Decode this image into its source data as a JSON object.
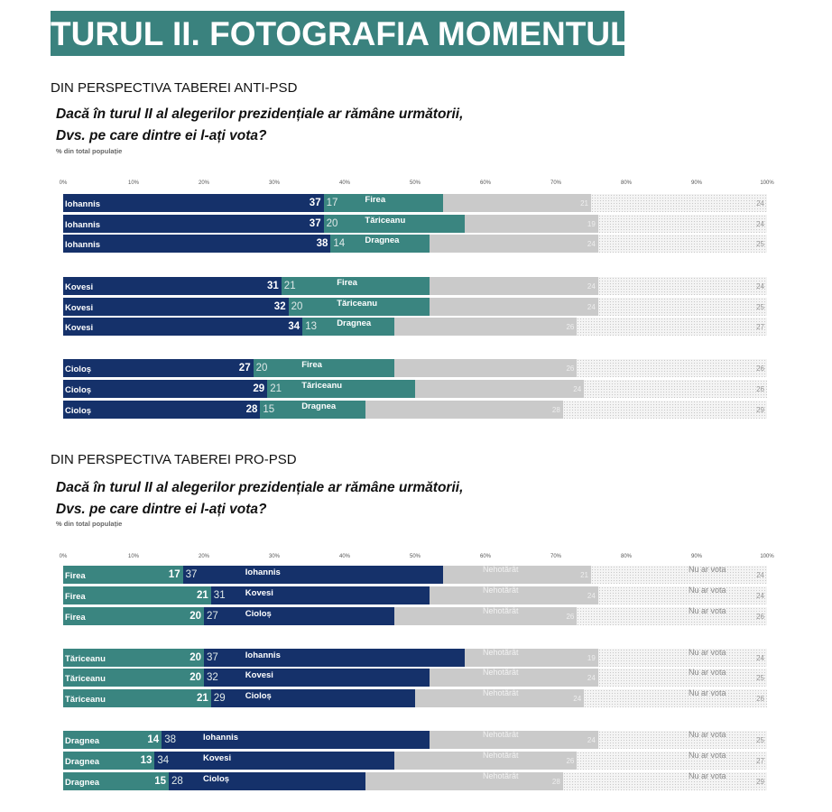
{
  "header": {
    "title": "TURUL II. FOTOGRAFIA MOMENTULUI"
  },
  "sections": [
    {
      "heading": "DIN PERSPECTIVA TABEREI ANTI-PSD",
      "question_line1": "Dacă în turul II al alegerilor prezidențiale ar rămâne următorii,",
      "question_line2": "Dvs. pe care dintre ei l-ați vota?",
      "subtitle": "% din total populație"
    },
    {
      "heading": "DIN PERSPECTIVA TABEREI PRO-PSD",
      "question_line1": "Dacă în turul II al alegerilor prezidențiale ar rămâne următorii,",
      "question_line2": "Dvs. pe care dintre ei l-ați vota?",
      "subtitle": "% din total populație"
    }
  ],
  "colors": {
    "header": "#3a827e",
    "navy": "#15316a",
    "teal": "#3a8580",
    "undecided": "#cacaca",
    "no_vote": "dotted light gray"
  },
  "chart_data": [
    {
      "type": "bar",
      "orientation": "horizontal",
      "stacked": true,
      "xlim": [
        0,
        100
      ],
      "ticks": [
        "0%",
        "10%",
        "20%",
        "30%",
        "40%",
        "50%",
        "60%",
        "70%",
        "80%",
        "90%",
        "100%"
      ],
      "segment_labels": {
        "undecided": "",
        "no_vote": ""
      },
      "rows": [
        {
          "a": "Iohannis",
          "av": 37,
          "b": "Firea",
          "bv": 17,
          "u": 21,
          "n": 24,
          "group": 0
        },
        {
          "a": "Iohannis",
          "av": 37,
          "b": "Tăriceanu",
          "bv": 20,
          "u": 19,
          "n": 24,
          "group": 0
        },
        {
          "a": "Iohannis",
          "av": 38,
          "b": "Dragnea",
          "bv": 14,
          "u": 24,
          "n": 25,
          "group": 0
        },
        {
          "a": "Kovesi",
          "av": 31,
          "b": "Firea",
          "bv": 21,
          "u": 24,
          "n": 24,
          "group": 1
        },
        {
          "a": "Kovesi",
          "av": 32,
          "b": "Tăriceanu",
          "bv": 20,
          "u": 24,
          "n": 25,
          "group": 1
        },
        {
          "a": "Kovesi",
          "av": 34,
          "b": "Dragnea",
          "bv": 13,
          "u": 26,
          "n": 27,
          "group": 1
        },
        {
          "a": "Cioloș",
          "av": 27,
          "b": "Firea",
          "bv": 20,
          "u": 26,
          "n": 26,
          "group": 2
        },
        {
          "a": "Cioloș",
          "av": 29,
          "b": "Tăriceanu",
          "bv": 21,
          "u": 24,
          "n": 26,
          "group": 2
        },
        {
          "a": "Cioloș",
          "av": 28,
          "b": "Dragnea",
          "bv": 15,
          "u": 28,
          "n": 29,
          "group": 2
        }
      ]
    },
    {
      "type": "bar",
      "orientation": "horizontal",
      "stacked": true,
      "xlim": [
        0,
        100
      ],
      "ticks": [
        "0%",
        "10%",
        "20%",
        "30%",
        "40%",
        "50%",
        "60%",
        "70%",
        "80%",
        "90%",
        "100%"
      ],
      "segment_labels": {
        "undecided": "Nehotărât",
        "no_vote": "Nu ar vota"
      },
      "rows": [
        {
          "a": "Firea",
          "av": 17,
          "b": "Iohannis",
          "bv": 37,
          "u": 21,
          "n": 24,
          "group": 0
        },
        {
          "a": "Firea",
          "av": 21,
          "b": "Kovesi",
          "bv": 31,
          "u": 24,
          "n": 24,
          "group": 0
        },
        {
          "a": "Firea",
          "av": 20,
          "b": "Cioloș",
          "bv": 27,
          "u": 26,
          "n": 26,
          "group": 0
        },
        {
          "a": "Tăriceanu",
          "av": 20,
          "b": "Iohannis",
          "bv": 37,
          "u": 19,
          "n": 24,
          "group": 1
        },
        {
          "a": "Tăriceanu",
          "av": 20,
          "b": "Kovesi",
          "bv": 32,
          "u": 24,
          "n": 25,
          "group": 1
        },
        {
          "a": "Tăriceanu",
          "av": 21,
          "b": "Cioloș",
          "bv": 29,
          "u": 24,
          "n": 26,
          "group": 1
        },
        {
          "a": "Dragnea",
          "av": 14,
          "b": "Iohannis",
          "bv": 38,
          "u": 24,
          "n": 25,
          "group": 2
        },
        {
          "a": "Dragnea",
          "av": 13,
          "b": "Kovesi",
          "bv": 34,
          "u": 26,
          "n": 27,
          "group": 2
        },
        {
          "a": "Dragnea",
          "av": 15,
          "b": "Cioloș",
          "bv": 28,
          "u": 28,
          "n": 29,
          "group": 2
        }
      ]
    }
  ]
}
